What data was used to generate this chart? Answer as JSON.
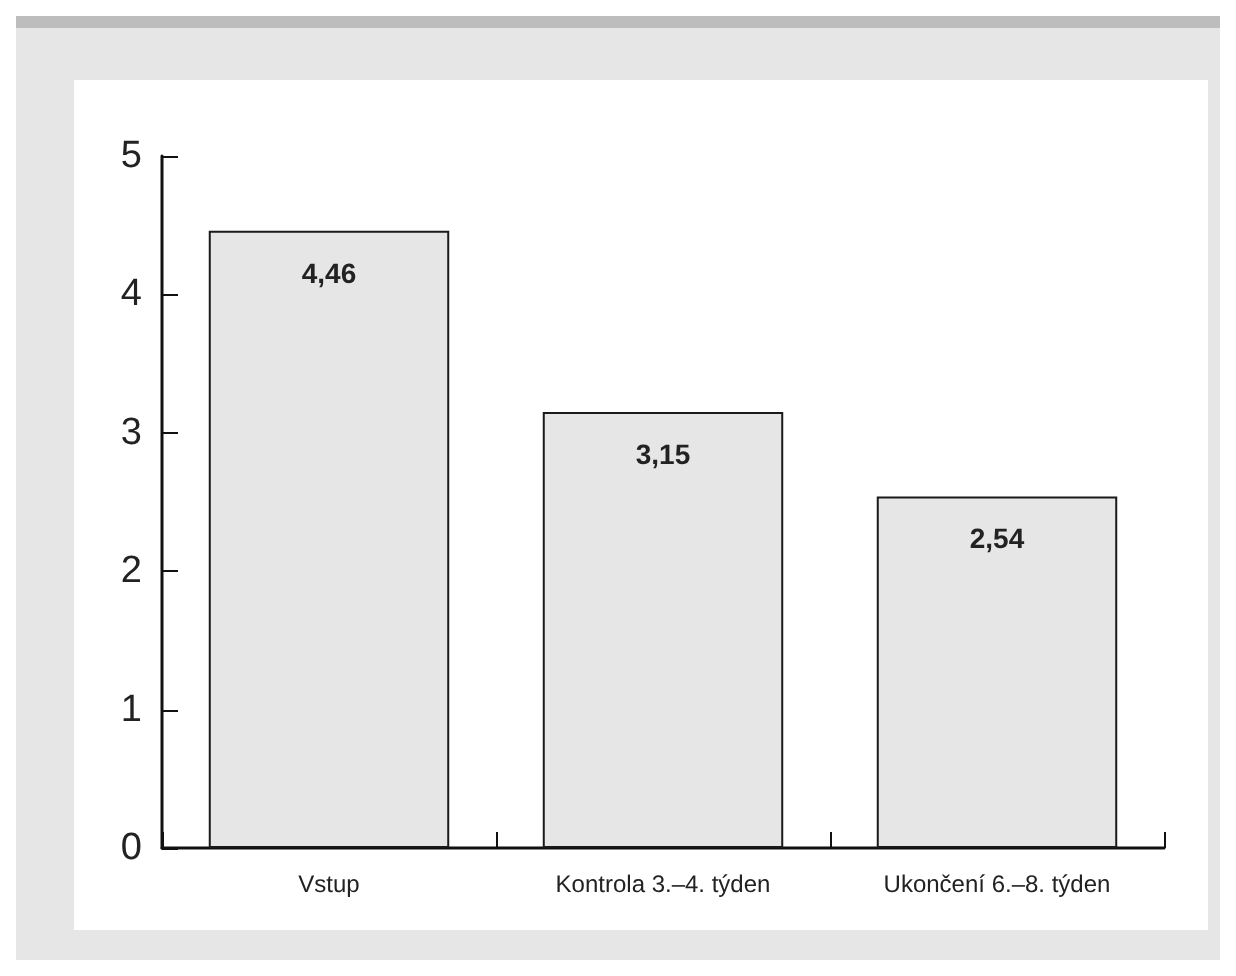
{
  "chart_data": {
    "type": "bar",
    "categories": [
      "Vstup",
      "Kontrola 3.–4. týden",
      "Ukončení 6.–8. týden"
    ],
    "values": [
      4.46,
      3.15,
      2.54
    ],
    "value_labels": [
      "4,46",
      "3,15",
      "2,54"
    ],
    "color": "#e6e6e6",
    "ylim": [
      0,
      5
    ],
    "yticks": [
      0,
      1,
      2,
      3,
      4,
      5
    ],
    "grid": false
  }
}
